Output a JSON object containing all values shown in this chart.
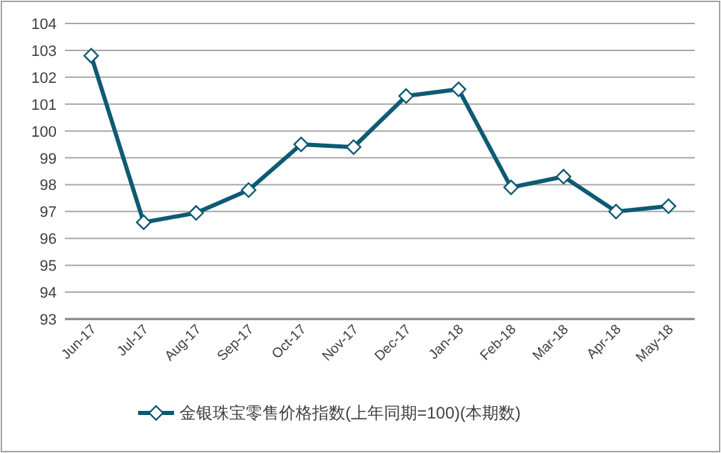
{
  "chart_data": {
    "type": "line",
    "categories": [
      "Jun-17",
      "Jul-17",
      "Aug-17",
      "Sep-17",
      "Oct-17",
      "Nov-17",
      "Dec-17",
      "Jan-18",
      "Feb-18",
      "Mar-18",
      "Apr-18",
      "May-18"
    ],
    "series": [
      {
        "name": "金银珠宝零售价格指数(上年同期=100)(本期数)",
        "color": "#0e5a73",
        "values": [
          102.8,
          96.6,
          96.95,
          97.8,
          99.5,
          99.4,
          101.3,
          101.55,
          97.9,
          98.3,
          97.0,
          97.2
        ]
      }
    ],
    "ylim": [
      93,
      104
    ],
    "yticks": [
      93,
      94,
      95,
      96,
      97,
      98,
      99,
      100,
      101,
      102,
      103,
      104
    ],
    "grid": "y",
    "legend": "bottom",
    "marker": "diamond",
    "line_style": "solid"
  }
}
